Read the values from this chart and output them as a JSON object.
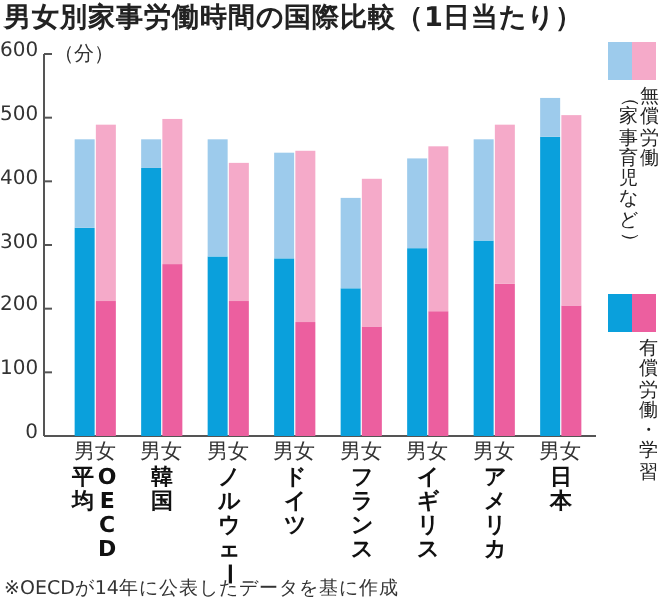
{
  "chart_data": {
    "type": "bar",
    "stacked": true,
    "title": "男女別家事労働時間の国際比較（1日当たり）",
    "ylabel": "（分）",
    "categories": [
      "男",
      "女",
      "男",
      "女",
      "男",
      "女",
      "男",
      "女",
      "男",
      "女",
      "男",
      "女",
      "男",
      "女",
      "男",
      "女"
    ],
    "series": [
      {
        "name": "有償労働・学習",
        "colors": [
          "#0aa0dc",
          "#ec5f9f",
          "#0aa0dc",
          "#ec5f9f",
          "#0aa0dc",
          "#ec5f9f",
          "#0aa0dc",
          "#ec5f9f",
          "#0aa0dc",
          "#ec5f9f",
          "#0aa0dc",
          "#ec5f9f",
          "#0aa0dc",
          "#ec5f9f",
          "#0aa0dc",
          "#ec5f9f"
        ],
        "values": [
          327,
          212,
          421,
          270,
          282,
          212,
          279,
          179,
          232,
          172,
          295,
          196,
          307,
          239,
          470,
          205
        ]
      },
      {
        "name": "無償労働（家事育児など）",
        "colors": [
          "#9dcbec",
          "#f5aac9",
          "#9dcbec",
          "#f5aac9",
          "#9dcbec",
          "#f5aac9",
          "#9dcbec",
          "#f5aac9",
          "#9dcbec",
          "#f5aac9",
          "#9dcbec",
          "#f5aac9",
          "#9dcbec",
          "#f5aac9",
          "#9dcbec",
          "#f5aac9"
        ],
        "values": [
          139,
          277,
          45,
          228,
          184,
          217,
          166,
          269,
          142,
          232,
          141,
          259,
          159,
          250,
          61,
          299
        ]
      }
    ],
    "ylim": [
      0,
      600
    ],
    "yticks": [
      0,
      100,
      200,
      300,
      400,
      500,
      600
    ],
    "grid": false,
    "legend": "right",
    "annotations": [
      "OECD平均",
      "韓国",
      "ノルウェー",
      "ドイツ",
      "フランス",
      "イギリス",
      "アメリカ",
      "日本",
      "※OECDが14年に公表したデータを基に作成"
    ]
  }
}
